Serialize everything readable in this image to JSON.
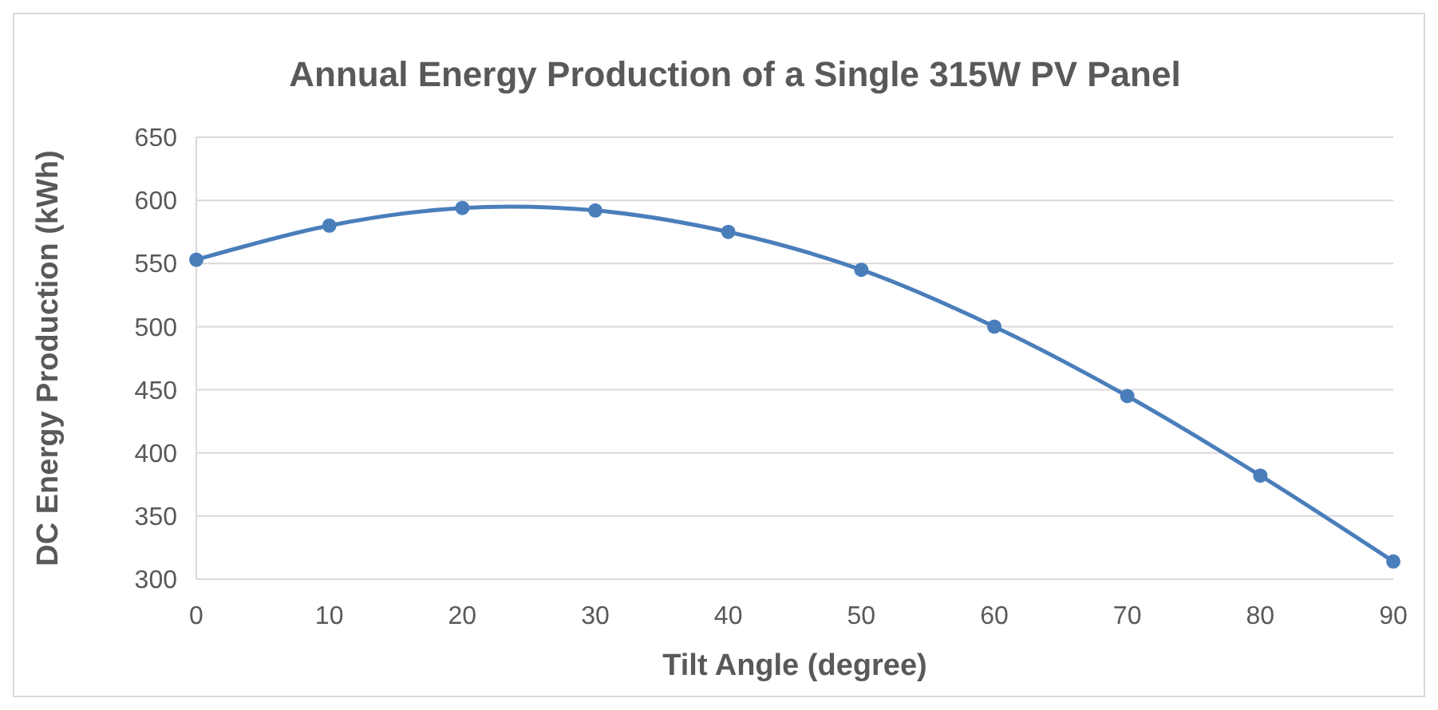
{
  "chart_data": {
    "type": "line",
    "title": "Annual Energy Production of a Single 315W PV Panel",
    "xlabel": "Tilt Angle (degree)",
    "ylabel": "DC Energy Production (kWh)",
    "x": [
      0,
      10,
      20,
      30,
      40,
      50,
      60,
      70,
      80,
      90
    ],
    "series": [
      {
        "color": "#4a7ebb",
        "values": [
          553,
          580,
          594,
          592,
          575,
          545,
          500,
          445,
          382,
          314
        ]
      }
    ],
    "xlim": [
      0,
      90
    ],
    "xticks": [
      0,
      10,
      20,
      30,
      40,
      50,
      60,
      70,
      80,
      90
    ],
    "ylim": [
      300,
      650
    ],
    "yticks": [
      300,
      350,
      400,
      450,
      500,
      550,
      600,
      650
    ],
    "grid": "y",
    "marker": "circle",
    "line_style": "solid"
  }
}
